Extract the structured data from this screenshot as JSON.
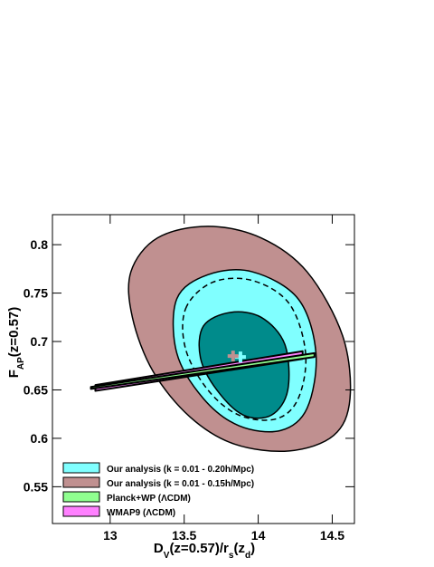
{
  "chart_data": {
    "type": "contour",
    "xlabel": [
      "D",
      "V",
      "(z=0.57)/r",
      "s",
      "(z",
      "d",
      ")"
    ],
    "ylabel": [
      "F",
      "AP",
      "(z=0.57)"
    ],
    "xlim": [
      12.61,
      14.65
    ],
    "ylim": [
      0.512,
      0.831
    ],
    "xticks": [
      13,
      13.5,
      14,
      14.5
    ],
    "yticks": [
      0.55,
      0.6,
      0.65,
      0.7,
      0.75,
      0.8
    ],
    "series": [
      {
        "name": "Our analysis (k = 0.01 - 0.20h/Mpc)",
        "color": "#80ffff",
        "contours": [
          {
            "fill": "#80ffff",
            "x": [
              13.45,
              13.66,
              13.96,
              14.27,
              14.39,
              14.33,
              14.15,
              13.87,
              13.63,
              13.45
            ],
            "y": [
              0.744,
              0.769,
              0.772,
              0.744,
              0.688,
              0.631,
              0.608,
              0.613,
              0.641,
              0.688
            ]
          },
          {
            "fill": "#008b8b",
            "x": [
              13.63,
              13.81,
              14.02,
              14.18,
              14.2,
              14.09,
              13.9,
              13.72,
              13.61
            ],
            "y": [
              0.716,
              0.73,
              0.725,
              0.697,
              0.65,
              0.624,
              0.624,
              0.65,
              0.683
            ]
          }
        ],
        "best_fit": {
          "x": 13.88,
          "y": 0.684
        }
      },
      {
        "name": "Our analysis (k = 0.01 - 0.15h/Mpc)",
        "color": "#c09090",
        "contours": [
          {
            "fill": "#c09090",
            "x": [
              13.14,
              13.32,
              13.66,
              14.02,
              14.33,
              14.57,
              14.62,
              14.51,
              14.21,
              13.84,
              13.54,
              13.29,
              13.15
            ],
            "y": [
              0.772,
              0.807,
              0.819,
              0.807,
              0.772,
              0.706,
              0.641,
              0.603,
              0.587,
              0.594,
              0.622,
              0.669,
              0.725
            ]
          },
          {
            "fill": "none",
            "dashed": true,
            "x": [
              13.51,
              13.69,
              13.96,
              14.21,
              14.32,
              14.27,
              14.12,
              13.87,
              13.66,
              13.51
            ],
            "y": [
              0.734,
              0.761,
              0.763,
              0.739,
              0.688,
              0.641,
              0.62,
              0.624,
              0.65,
              0.692
            ]
          }
        ],
        "best_fit": {
          "x": 13.83,
          "y": 0.685
        }
      },
      {
        "name": "Planck+WP (ΛCDM)",
        "color": "#90ff90",
        "contours": [
          {
            "fill": "#90ff90",
            "x": [
              12.87,
              14.38,
              14.38,
              12.87
            ],
            "y": [
              0.653,
              0.688,
              0.684,
              0.651
            ]
          }
        ]
      },
      {
        "name": "WMAP9 (ΛCDM)",
        "color": "#ff80ff",
        "contours": [
          {
            "fill": "#ff80ff",
            "x": [
              12.9,
              14.3,
              14.3,
              12.9
            ],
            "y": [
              0.655,
              0.69,
              0.682,
              0.649
            ]
          }
        ]
      }
    ]
  }
}
